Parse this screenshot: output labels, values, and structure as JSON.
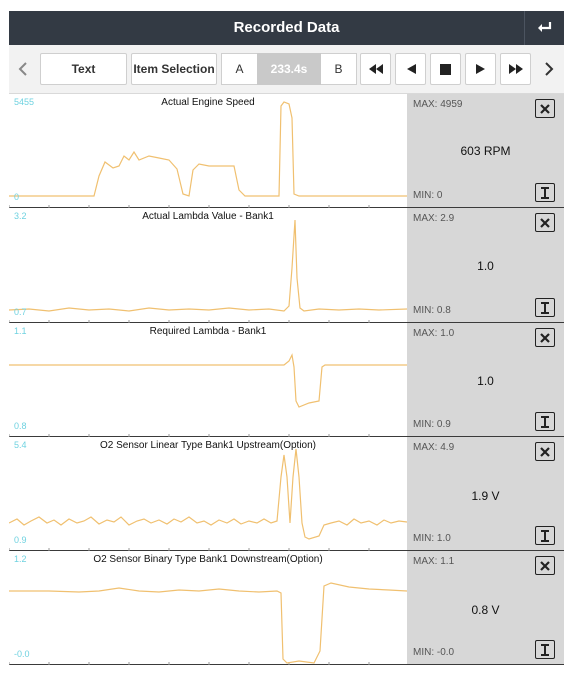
{
  "header": {
    "title": "Recorded Data",
    "back_icon": "return-arrow-icon"
  },
  "toolbar": {
    "prev_icon": "chevron-left-icon",
    "text_label": "Text",
    "item_selection_label": "Item Selection",
    "marker_a": "A",
    "time": "233.4s",
    "marker_b": "B",
    "controls": [
      "rewind-icon",
      "step-back-icon",
      "stop-icon",
      "play-icon",
      "fast-forward-icon"
    ],
    "next_icon": "chevron-right-icon"
  },
  "colors": {
    "trace": "#f0c070",
    "scale": "#6fd2e0",
    "sidebar": "#d7d7d7",
    "header": "#333a44"
  },
  "panels": [
    {
      "title": "Actual Engine Speed",
      "ymax": "5455",
      "ymin": "0",
      "max_label": "MAX: 4959",
      "min_label": "MIN: 0",
      "value": "603 RPM"
    },
    {
      "title": "Actual Lambda Value - Bank1",
      "ymax": "3.2",
      "ymin": "0.7",
      "max_label": "MAX: 2.9",
      "min_label": "MIN: 0.8",
      "value": "1.0"
    },
    {
      "title": "Required Lambda - Bank1",
      "ymax": "1.1",
      "ymin": "0.8",
      "max_label": "MAX: 1.0",
      "min_label": "MIN: 0.9",
      "value": "1.0"
    },
    {
      "title": "O2 Sensor Linear Type Bank1 Upstream(Option)",
      "ymax": "5.4",
      "ymin": "0.9",
      "max_label": "MAX: 4.9",
      "min_label": "MIN: 1.0",
      "value": "1.9 V"
    },
    {
      "title": "O2 Sensor Binary Type Bank1 Downstream(Option)",
      "ymax": "1.2",
      "ymin": "-0.0",
      "max_label": "MAX: 1.1",
      "min_label": "MIN: -0.0",
      "value": "0.8 V"
    }
  ]
}
